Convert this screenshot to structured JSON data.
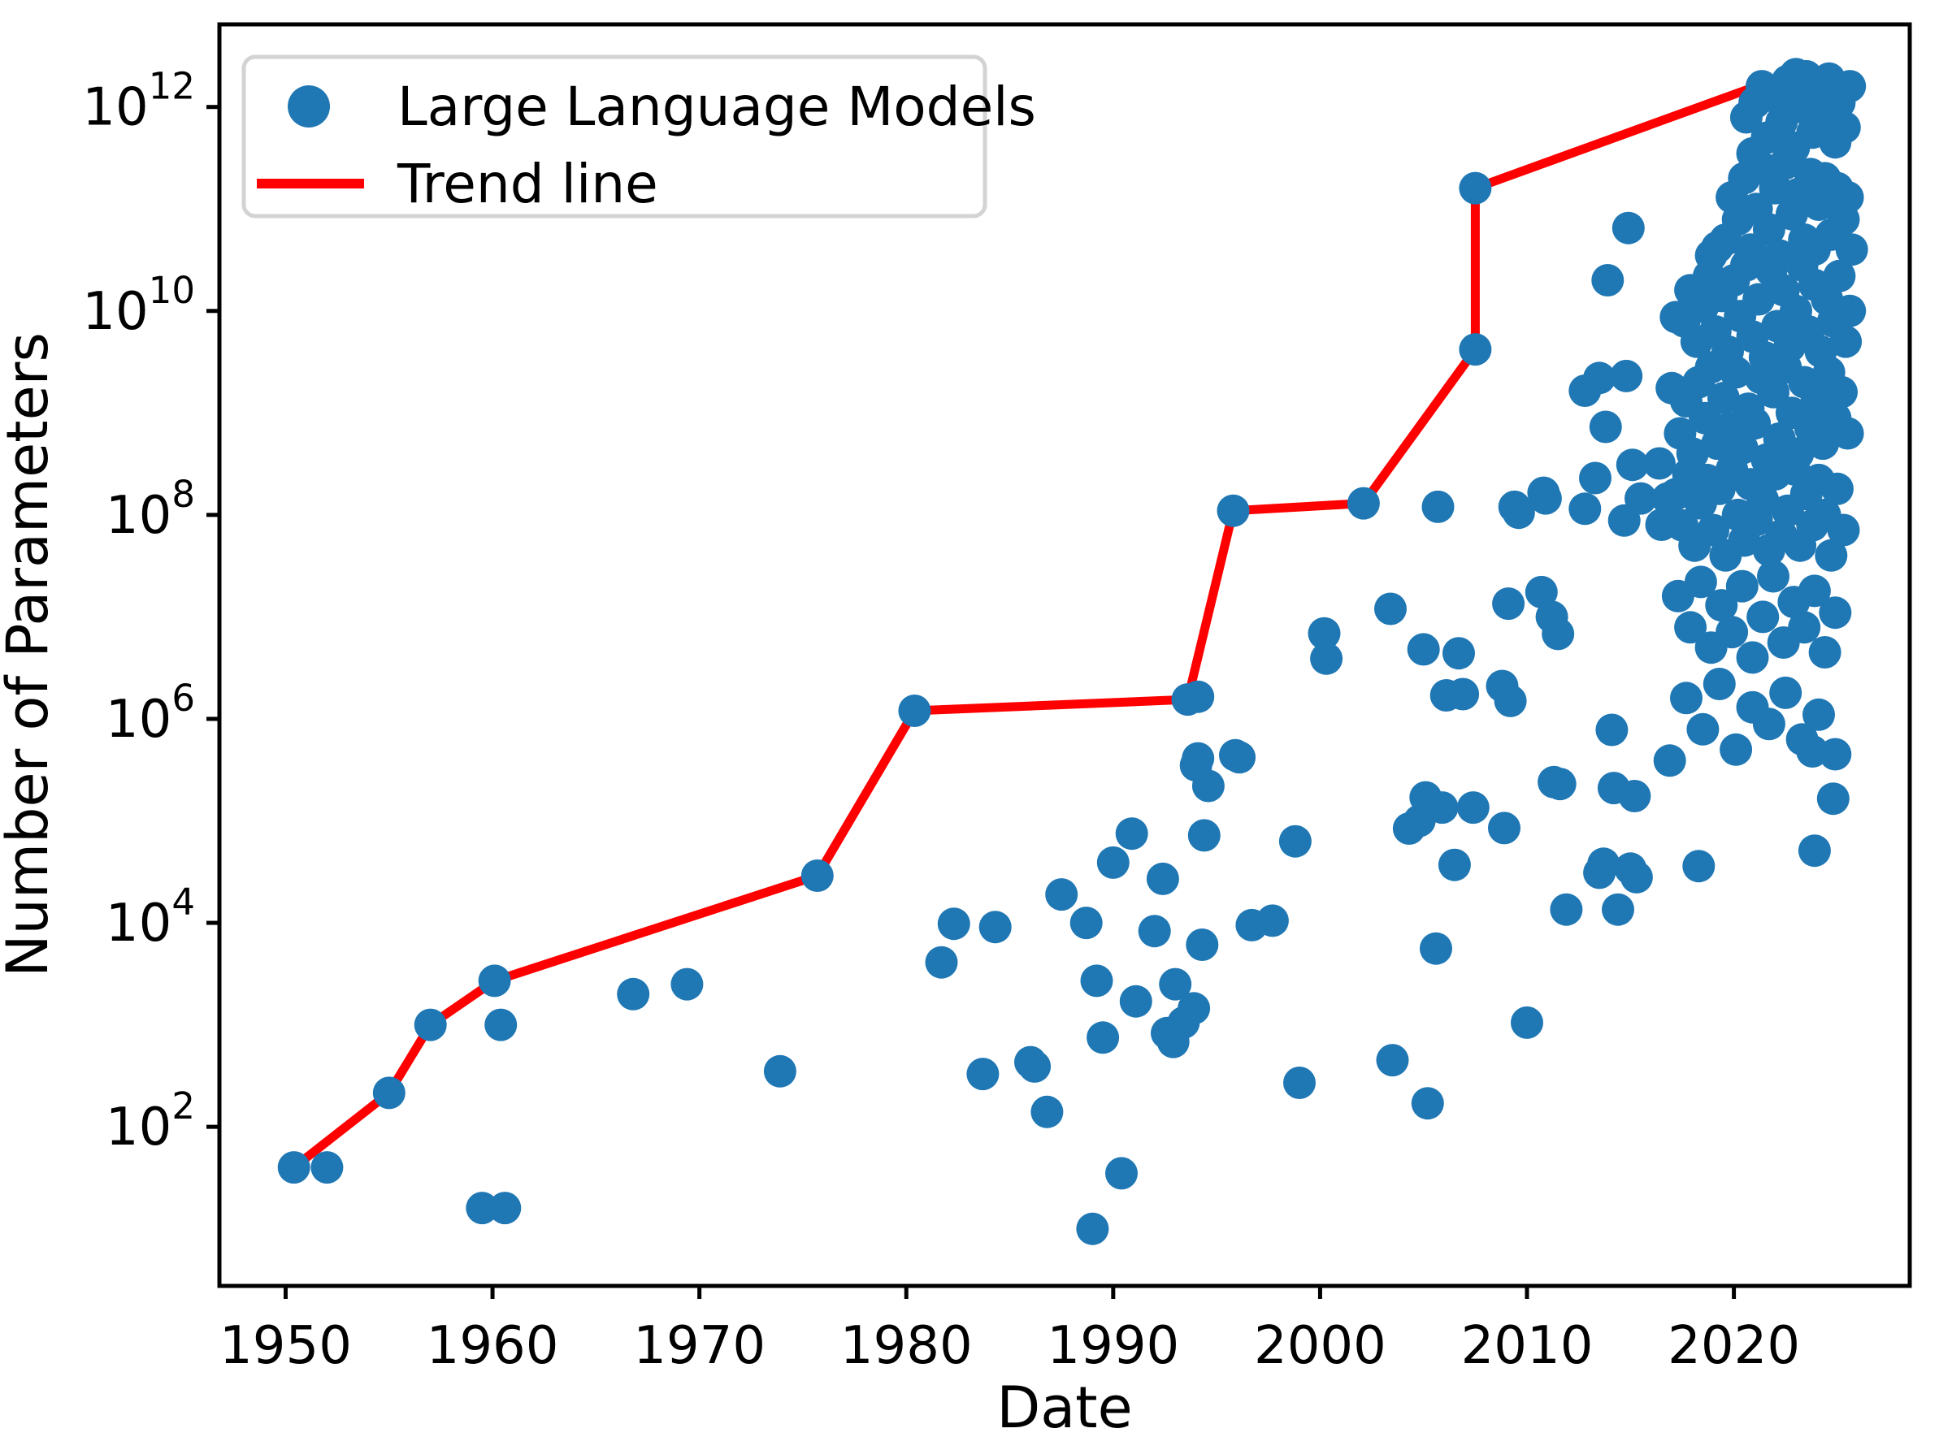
{
  "chart_data": {
    "type": "scatter",
    "title": "",
    "xlabel": "Date",
    "ylabel": "Number of Parameters",
    "background": "#ffffff",
    "axis_color": "#000000",
    "grid": false,
    "x_axis": {
      "min": 1946.8,
      "max": 2028.5,
      "ticks": [
        1950,
        1960,
        1970,
        1980,
        1990,
        2000,
        2010,
        2020
      ]
    },
    "y_axis": {
      "scale": "log",
      "min_log": 0.44,
      "max_log": 12.81,
      "tick_exponents": [
        2,
        4,
        6,
        8,
        10,
        12
      ],
      "tick_base": "10"
    },
    "legend": {
      "position": "upper-left",
      "border_color": "#d3d3d3",
      "fill": "#ffffff"
    },
    "series": [
      {
        "name": "Large Language Models",
        "type": "scatter",
        "color": "#1f77b4",
        "marker_radius": 20,
        "points": [
          [
            1950.4,
            40
          ],
          [
            1952.0,
            40
          ],
          [
            1955.0,
            215
          ],
          [
            1957.0,
            1000
          ],
          [
            1959.5,
            16
          ],
          [
            1960.6,
            16
          ],
          [
            1960.1,
            2700
          ],
          [
            1960.4,
            1000
          ],
          [
            1966.8,
            2000
          ],
          [
            1969.4,
            2500
          ],
          [
            1973.9,
            350
          ],
          [
            1975.7,
            29000
          ],
          [
            1980.4,
            1200000
          ],
          [
            1981.7,
            4100
          ],
          [
            1982.3,
            9800
          ],
          [
            1983.7,
            330
          ],
          [
            1984.3,
            9100
          ],
          [
            1986.0,
            430
          ],
          [
            1986.2,
            390
          ],
          [
            1986.8,
            140
          ],
          [
            1987.5,
            19000
          ],
          [
            1988.7,
            10000
          ],
          [
            1989.0,
            10
          ],
          [
            1989.2,
            2700
          ],
          [
            1989.5,
            750
          ],
          [
            1990.0,
            39000
          ],
          [
            1990.4,
            35
          ],
          [
            1990.9,
            75000
          ],
          [
            1991.1,
            1700
          ],
          [
            1992.0,
            8300
          ],
          [
            1992.4,
            27000
          ],
          [
            1992.6,
            830
          ],
          [
            1992.9,
            680
          ],
          [
            1993.0,
            2500
          ],
          [
            1993.4,
            1050
          ],
          [
            1993.6,
            1550000
          ],
          [
            1993.9,
            1450
          ],
          [
            1994.0,
            350000
          ],
          [
            1994.1,
            410000
          ],
          [
            1994.1,
            1650000
          ],
          [
            1994.3,
            6100
          ],
          [
            1994.4,
            72000
          ],
          [
            1994.6,
            220000
          ],
          [
            1995.8,
            110000000
          ],
          [
            1995.9,
            440000
          ],
          [
            1996.1,
            420000
          ],
          [
            1996.7,
            9500
          ],
          [
            1997.7,
            10500
          ],
          [
            1998.8,
            63000
          ],
          [
            1999.0,
            270
          ],
          [
            2000.2,
            6900000
          ],
          [
            2000.3,
            3900000
          ],
          [
            2002.1,
            130000000
          ],
          [
            2003.4,
            12000000
          ],
          [
            2003.5,
            450
          ],
          [
            2004.3,
            84000
          ],
          [
            2004.8,
            100000
          ],
          [
            2005.0,
            4800000
          ],
          [
            2005.1,
            170000
          ],
          [
            2005.2,
            170
          ],
          [
            2005.6,
            5600
          ],
          [
            2005.7,
            120000000
          ],
          [
            2005.9,
            135000
          ],
          [
            2006.1,
            1700000
          ],
          [
            2006.5,
            37000
          ],
          [
            2006.7,
            4400000
          ],
          [
            2006.9,
            1750000
          ],
          [
            2007.4,
            135000
          ],
          [
            2007.5,
            4200000000
          ],
          [
            2007.5,
            160000000000
          ],
          [
            2008.8,
            2100000
          ],
          [
            2008.9,
            85000
          ],
          [
            2009.1,
            13500000
          ],
          [
            2009.2,
            1500000
          ],
          [
            2009.4,
            120000000
          ],
          [
            2009.6,
            105000000
          ],
          [
            2010.0,
            1050
          ],
          [
            2010.7,
            17500000
          ],
          [
            2010.8,
            165000000
          ],
          [
            2010.9,
            145000000
          ],
          [
            2011.2,
            10000000
          ],
          [
            2011.3,
            240000
          ],
          [
            2011.5,
            6800000
          ],
          [
            2011.6,
            230000
          ],
          [
            2011.9,
            13500
          ],
          [
            2012.8,
            1650000000
          ],
          [
            2012.8,
            115000000
          ],
          [
            2013.3,
            230000000
          ],
          [
            2013.5,
            2200000000
          ],
          [
            2013.5,
            31000
          ],
          [
            2013.7,
            38000
          ],
          [
            2013.8,
            730000000
          ],
          [
            2013.9,
            20000000000
          ],
          [
            2014.1,
            780000
          ],
          [
            2014.2,
            210000
          ],
          [
            2014.4,
            13500
          ],
          [
            2014.7,
            88000000
          ],
          [
            2014.8,
            2300000000
          ],
          [
            2014.9,
            65000000000
          ],
          [
            2015.0,
            34000
          ],
          [
            2015.1,
            310000000
          ],
          [
            2015.2,
            175000
          ],
          [
            2015.3,
            28000
          ],
          [
            2015.5,
            145000000
          ],
          [
            2016.4,
            320000000
          ],
          [
            2016.5,
            80000000
          ],
          [
            2016.8,
            145000000
          ],
          [
            2016.9,
            390000
          ],
          [
            2017.0,
            1750000000
          ],
          [
            2017.2,
            8700000000
          ],
          [
            2018.3,
            36000
          ],
          [
            2023.8,
            480000
          ],
          [
            2023.9,
            51000
          ],
          [
            2024.8,
            165000
          ],
          [
            2020.6,
            790000000000
          ],
          [
            2020.9,
            350000000000
          ],
          [
            2021.0,
            1100000000000
          ],
          [
            2021.35,
            1600000000000
          ],
          [
            2021.6,
            500000000000
          ],
          [
            2022.0,
            1250000000000
          ],
          [
            2022.3,
            710000000000
          ],
          [
            2022.6,
            1800000000000
          ],
          [
            2022.9,
            400000000000
          ],
          [
            2023.0,
            2100000000000
          ],
          [
            2023.2,
            1000000000000
          ],
          [
            2023.5,
            2000000000000
          ],
          [
            2023.8,
            560000000000
          ],
          [
            2024.05,
            1400000000000
          ],
          [
            2024.3,
            790000000000
          ],
          [
            2024.6,
            1900000000000
          ],
          [
            2024.9,
            450000000000
          ],
          [
            2025.1,
            1100000000000
          ],
          [
            2025.35,
            630000000000
          ],
          [
            2025.6,
            1600000000000
          ],
          [
            2018.9,
            35000000000
          ],
          [
            2019.2,
            42000000000
          ],
          [
            2019.6,
            50000000000
          ],
          [
            2019.9,
            130000000000
          ],
          [
            2020.2,
            79000000000
          ],
          [
            2020.5,
            200000000000
          ],
          [
            2020.8,
            40000000000
          ],
          [
            2021.1,
            100000000000
          ],
          [
            2021.4,
            250000000000
          ],
          [
            2021.7,
            63000000000
          ],
          [
            2022.0,
            160000000000
          ],
          [
            2022.2,
            35000000000
          ],
          [
            2022.5,
            280000000000
          ],
          [
            2022.8,
            89000000000
          ],
          [
            2023.1,
            140000000000
          ],
          [
            2023.4,
            50000000000
          ],
          [
            2023.7,
            220000000000
          ],
          [
            2023.9,
            40000000000
          ],
          [
            2024.1,
            110000000000
          ],
          [
            2024.4,
            200000000000
          ],
          [
            2024.7,
            56000000000
          ],
          [
            2025.0,
            160000000000
          ],
          [
            2025.3,
            79000000000
          ],
          [
            2025.5,
            130000000000
          ],
          [
            2025.7,
            40000000000
          ],
          [
            2017.6,
            7900000000
          ],
          [
            2017.9,
            16000000000
          ],
          [
            2018.2,
            5000000000
          ],
          [
            2018.5,
            11000000000
          ],
          [
            2018.8,
            22000000000
          ],
          [
            2019.1,
            6300000000
          ],
          [
            2019.4,
            14000000000
          ],
          [
            2019.7,
            4000000000
          ],
          [
            2020.0,
            20000000000
          ],
          [
            2020.3,
            8900000000
          ],
          [
            2020.6,
            28000000000
          ],
          [
            2020.9,
            5600000000
          ],
          [
            2021.2,
            13000000000
          ],
          [
            2021.5,
            3500000000
          ],
          [
            2021.8,
            25000000000
          ],
          [
            2022.1,
            7100000000
          ],
          [
            2022.4,
            16000000000
          ],
          [
            2022.7,
            4500000000
          ],
          [
            2023.0,
            10000000000
          ],
          [
            2023.3,
            28000000000
          ],
          [
            2023.6,
            6300000000
          ],
          [
            2023.9,
            18000000000
          ],
          [
            2024.2,
            4000000000
          ],
          [
            2024.5,
            13000000000
          ],
          [
            2024.8,
            7900000000
          ],
          [
            2025.1,
            22000000000
          ],
          [
            2025.4,
            5000000000
          ],
          [
            2025.6,
            10000000000
          ],
          [
            2017.4,
            630000000
          ],
          [
            2017.7,
            1300000000
          ],
          [
            2018.0,
            400000000
          ],
          [
            2018.3,
            2000000000
          ],
          [
            2018.6,
            890000000
          ],
          [
            2018.9,
            2800000000
          ],
          [
            2019.2,
            500000000
          ],
          [
            2019.5,
            1400000000
          ],
          [
            2019.8,
            710000000
          ],
          [
            2020.1,
            2500000000
          ],
          [
            2020.4,
            450000000
          ],
          [
            2020.7,
            1100000000
          ],
          [
            2021.0,
            790000000
          ],
          [
            2021.3,
            2200000000
          ],
          [
            2021.6,
            350000000
          ],
          [
            2021.9,
            1600000000
          ],
          [
            2022.2,
            560000000
          ],
          [
            2022.5,
            2800000000
          ],
          [
            2022.8,
            1000000000
          ],
          [
            2023.1,
            400000000
          ],
          [
            2023.4,
            2000000000
          ],
          [
            2023.7,
            710000000
          ],
          [
            2024.0,
            1300000000
          ],
          [
            2024.3,
            500000000
          ],
          [
            2024.6,
            2500000000
          ],
          [
            2024.9,
            890000000
          ],
          [
            2025.2,
            1600000000
          ],
          [
            2025.5,
            630000000
          ],
          [
            2017.2,
            160000000
          ],
          [
            2017.5,
            79000000
          ],
          [
            2017.8,
            250000000
          ],
          [
            2018.1,
            50000000
          ],
          [
            2018.4,
            130000000
          ],
          [
            2018.7,
            220000000
          ],
          [
            2019.0,
            71000000
          ],
          [
            2019.3,
            180000000
          ],
          [
            2019.6,
            40000000
          ],
          [
            2019.9,
            280000000
          ],
          [
            2020.2,
            100000000
          ],
          [
            2020.5,
            56000000
          ],
          [
            2020.8,
            200000000
          ],
          [
            2021.1,
            89000000
          ],
          [
            2021.4,
            140000000
          ],
          [
            2021.7,
            45000000
          ],
          [
            2022.0,
            250000000
          ],
          [
            2022.3,
            63000000
          ],
          [
            2022.6,
            110000000
          ],
          [
            2022.9,
            280000000
          ],
          [
            2023.2,
            50000000
          ],
          [
            2023.5,
            160000000
          ],
          [
            2023.8,
            79000000
          ],
          [
            2024.1,
            220000000
          ],
          [
            2024.4,
            100000000
          ],
          [
            2024.7,
            40000000
          ],
          [
            2025.0,
            180000000
          ],
          [
            2025.3,
            71000000
          ],
          [
            2017.3,
            16000000
          ],
          [
            2017.9,
            7900000
          ],
          [
            2018.4,
            22000000
          ],
          [
            2018.9,
            5000000
          ],
          [
            2019.4,
            13000000
          ],
          [
            2019.9,
            7100000
          ],
          [
            2020.4,
            20000000
          ],
          [
            2020.9,
            4000000
          ],
          [
            2021.4,
            10000000
          ],
          [
            2021.9,
            25000000
          ],
          [
            2022.4,
            5600000
          ],
          [
            2022.9,
            14000000
          ],
          [
            2023.4,
            7900000
          ],
          [
            2023.9,
            18000000
          ],
          [
            2024.4,
            4500000
          ],
          [
            2024.9,
            11000000
          ],
          [
            2017.7,
            1600000
          ],
          [
            2018.5,
            790000
          ],
          [
            2019.3,
            2200000
          ],
          [
            2020.1,
            500000
          ],
          [
            2020.9,
            1300000
          ],
          [
            2021.7,
            890000
          ],
          [
            2022.5,
            1800000
          ],
          [
            2023.3,
            630000
          ],
          [
            2024.1,
            1100000
          ],
          [
            2024.9,
            450000
          ]
        ]
      },
      {
        "name": "Trend line",
        "type": "line",
        "color": "#ff0000",
        "line_width": 11,
        "points": [
          [
            1950.4,
            40
          ],
          [
            1955.0,
            215
          ],
          [
            1957.0,
            1000
          ],
          [
            1960.1,
            2700
          ],
          [
            1975.7,
            29000
          ],
          [
            1980.4,
            1200000
          ],
          [
            1993.6,
            1550000
          ],
          [
            1995.8,
            110000000
          ],
          [
            2002.1,
            130000000
          ],
          [
            2007.5,
            4200000000
          ],
          [
            2007.5,
            160000000000
          ],
          [
            2021.1,
            1600000000000
          ],
          [
            2024.2,
            1600000000000
          ]
        ]
      }
    ]
  }
}
